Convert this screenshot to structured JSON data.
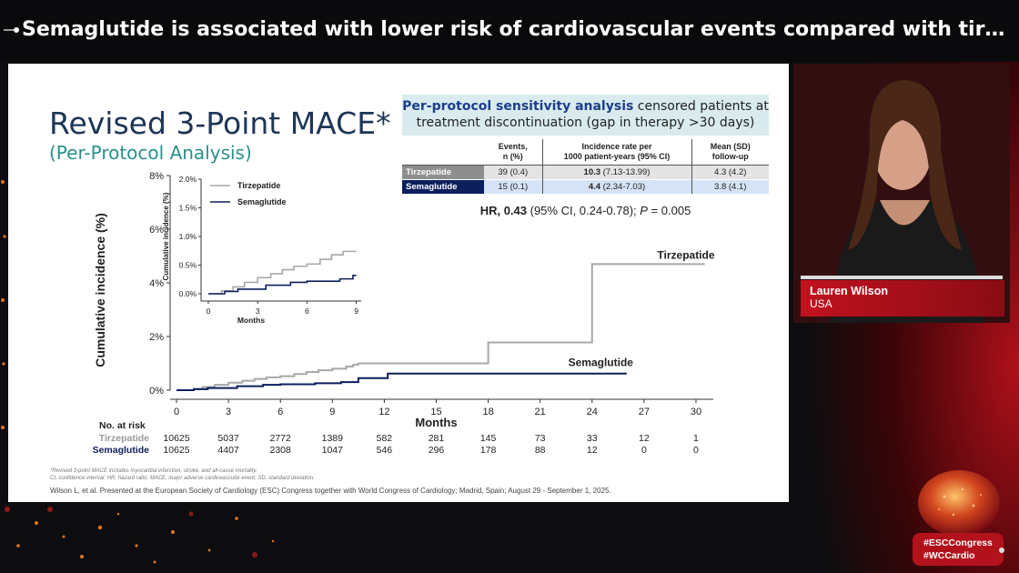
{
  "headline": "Semaglutide is associated with lower risk of cardiovascular events compared with tirzepatide in patients...",
  "slide": {
    "title": "Revised 3-Point MACE*",
    "subtitle": "(Per-Protocol Analysis)",
    "pp_box": {
      "bold": "Per-protocol sensitivity analysis",
      "rest": " censored patients at treatment discontinuation (gap in therapy >30 days)"
    },
    "table": {
      "headers": [
        "",
        "Events,\nn (%)",
        "Incidence rate per\n1000 patient-years (95% CI)",
        "Mean (SD)\nfollow-up"
      ],
      "rows": [
        {
          "label": "Tirzepatide",
          "events": "39 (0.4)",
          "rate_bold": "10.3",
          "rate_ci": " (7.13-13.99)",
          "followup": "4.3 (4.2)"
        },
        {
          "label": "Semaglutide",
          "events": "15 (0.1)",
          "rate_bold": "4.4",
          "rate_ci": " (2.34-7.03)",
          "followup": "3.8 (4.1)"
        }
      ]
    },
    "hr": {
      "bold": "HR, 0.43",
      "rest": " (95% CI, 0.24-0.78); ",
      "p_label": "P",
      "p_value": " = 0.005"
    },
    "footnote": [
      "*Revised 3-point MACE includes myocardial infarction, stroke, and all-cause mortality.",
      "CI, confidence interval; HR, hazard ratio; MACE, major adverse cardiovascular event; SD, standard deviation."
    ],
    "citation": "Wilson L, et al. Presented at the European Society of Cardiology (ESC) Congress together with World Congress of Cardiology; Madrid, Spain; August 29 - September 1, 2025."
  },
  "chart_data": [
    {
      "type": "line",
      "ylabel": "Cumulative incidence (%)",
      "xlabel": "Months",
      "xlim": [
        0,
        31
      ],
      "ylim": [
        0,
        8
      ],
      "x_ticks": [
        0,
        3,
        6,
        9,
        12,
        15,
        18,
        21,
        24,
        27,
        30
      ],
      "y_ticks": [
        "0%",
        "2%",
        "4%",
        "6%",
        "8%"
      ],
      "y_tick_values": [
        0,
        2,
        4,
        6,
        8
      ],
      "series": [
        {
          "name": "Tirzepatide",
          "color": "#a8a8a8",
          "x": [
            0,
            1,
            1.5,
            2.2,
            3,
            3.8,
            4.5,
            5.2,
            6,
            6.8,
            7.5,
            8.2,
            9,
            9.8,
            10.2,
            10.5,
            12,
            15,
            18,
            18,
            24,
            24,
            30.5
          ],
          "y": [
            0,
            0.05,
            0.12,
            0.2,
            0.28,
            0.35,
            0.42,
            0.48,
            0.52,
            0.6,
            0.68,
            0.74,
            0.8,
            0.88,
            0.95,
            1.0,
            1.0,
            1.0,
            1.0,
            1.78,
            1.78,
            4.7,
            4.7
          ]
        },
        {
          "name": "Semaglutide",
          "color": "#0c1f5c",
          "x": [
            0,
            1,
            1.8,
            3.5,
            5,
            6,
            8,
            9.5,
            10.5,
            12,
            12.2,
            15,
            18,
            21,
            24,
            26
          ],
          "y": [
            0,
            0.04,
            0.08,
            0.15,
            0.2,
            0.22,
            0.26,
            0.3,
            0.45,
            0.45,
            0.62,
            0.62,
            0.62,
            0.62,
            0.62,
            0.62
          ]
        }
      ],
      "labels": [
        "Tirzepatide",
        "Semaglutide"
      ]
    },
    {
      "type": "line",
      "ylabel": "Cumulative incidence (%)",
      "xlabel": "Months",
      "xlim": [
        0,
        9.3
      ],
      "ylim": [
        0,
        2.0
      ],
      "x_ticks": [
        0,
        3,
        6,
        9
      ],
      "y_ticks": [
        "0.0%",
        "0.5%",
        "1.0%",
        "1.5%",
        "2.0%"
      ],
      "y_tick_values": [
        0,
        0.5,
        1.0,
        1.5,
        2.0
      ],
      "legend": "top-left",
      "series": [
        {
          "name": "Tirzepatide",
          "color": "#a8a8a8",
          "x": [
            0,
            0.8,
            1.5,
            2.2,
            3,
            3.8,
            4.5,
            5.2,
            6,
            6.8,
            7.5,
            8.2,
            9
          ],
          "y": [
            0,
            0.05,
            0.12,
            0.2,
            0.28,
            0.35,
            0.42,
            0.48,
            0.52,
            0.6,
            0.68,
            0.74,
            0.74
          ]
        },
        {
          "name": "Semaglutide",
          "color": "#0c1f5c",
          "x": [
            0,
            1,
            1.8,
            3.5,
            5,
            6,
            8,
            8.8,
            9
          ],
          "y": [
            0,
            0.04,
            0.08,
            0.15,
            0.2,
            0.22,
            0.26,
            0.32,
            0.32
          ]
        }
      ]
    }
  ],
  "at_risk": {
    "title": "No. at risk",
    "rows": [
      {
        "name": "Tirzepatide",
        "color": "#9a9a9a",
        "values": [
          "10625",
          "5037",
          "2772",
          "1389",
          "582",
          "281",
          "145",
          "73",
          "33",
          "12",
          "1"
        ]
      },
      {
        "name": "Semaglutide",
        "color": "#0c1f5c",
        "values": [
          "10625",
          "4407",
          "2308",
          "1047",
          "546",
          "296",
          "178",
          "88",
          "12",
          "0",
          "0"
        ]
      }
    ]
  },
  "speaker": {
    "name": "Lauren Wilson",
    "country": "USA"
  },
  "badge": {
    "line1": "#ESCCongress",
    "line2": "#WCCardio"
  },
  "colors": {
    "brand_red": "#c1121f",
    "title_blue": "#1d3557",
    "teal": "#2a8f8b"
  }
}
